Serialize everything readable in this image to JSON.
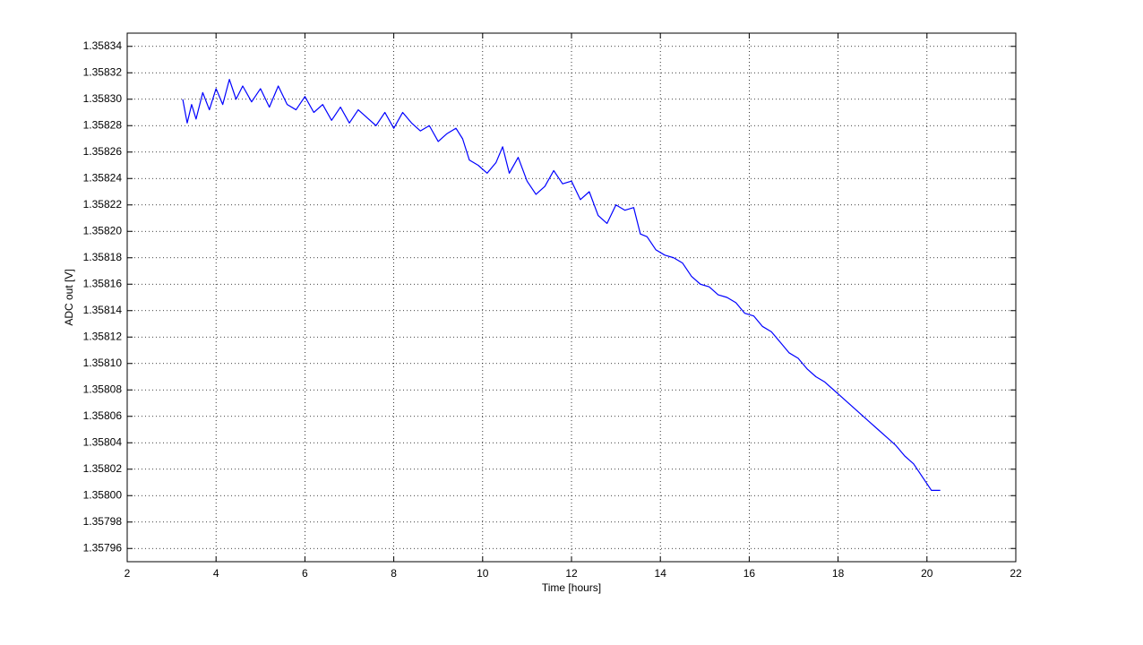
{
  "chart_data": {
    "type": "line",
    "x_label": "Time [hours]",
    "y_label": "ADC out [V]",
    "xlim": [
      2,
      22
    ],
    "xticks": [
      2,
      4,
      6,
      8,
      10,
      12,
      14,
      16,
      18,
      20,
      22
    ],
    "ylim": [
      1.35795,
      1.35835
    ],
    "yticks": [
      1.35796,
      1.35798,
      {
        "value": 1.358,
        "label": "1.35800"
      },
      1.35802,
      1.35804,
      1.35806,
      1.35808,
      {
        "value": 1.3581,
        "label": "1.35810"
      },
      1.35812,
      1.35814,
      1.35816,
      1.35818,
      {
        "value": 1.3582,
        "label": "1.35820"
      },
      1.35822,
      1.35824,
      1.35826,
      1.35828,
      {
        "value": 1.3583,
        "label": "1.35830"
      },
      1.35832,
      1.35834
    ],
    "grid": true,
    "x": [
      3.25,
      3.35,
      3.45,
      3.55,
      3.7,
      3.85,
      4.0,
      4.15,
      4.3,
      4.45,
      4.6,
      4.8,
      5.0,
      5.2,
      5.4,
      5.6,
      5.8,
      6.0,
      6.2,
      6.4,
      6.6,
      6.8,
      7.0,
      7.2,
      7.4,
      7.6,
      7.8,
      8.0,
      8.2,
      8.4,
      8.6,
      8.8,
      9.0,
      9.2,
      9.4,
      9.55,
      9.7,
      9.9,
      10.1,
      10.3,
      10.45,
      10.6,
      10.8,
      11.0,
      11.2,
      11.4,
      11.6,
      11.8,
      12.0,
      12.2,
      12.4,
      12.6,
      12.8,
      13.0,
      13.2,
      13.4,
      13.55,
      13.7,
      13.9,
      14.1,
      14.3,
      14.5,
      14.7,
      14.9,
      15.1,
      15.3,
      15.5,
      15.7,
      15.9,
      16.1,
      16.3,
      16.5,
      16.7,
      16.9,
      17.1,
      17.3,
      17.5,
      17.7,
      17.9,
      18.1,
      18.3,
      18.5,
      18.7,
      18.9,
      19.1,
      19.3,
      19.5,
      19.7,
      19.9,
      20.1,
      20.3
    ],
    "series": [
      {
        "color": "#0000ff",
        "values": [
          1.3583,
          1.358282,
          1.358296,
          1.358285,
          1.358305,
          1.358292,
          1.358308,
          1.358296,
          1.358315,
          1.3583,
          1.35831,
          1.358298,
          1.358308,
          1.358294,
          1.35831,
          1.358296,
          1.358292,
          1.358302,
          1.35829,
          1.358296,
          1.358284,
          1.358294,
          1.358282,
          1.358292,
          1.358286,
          1.35828,
          1.35829,
          1.358278,
          1.35829,
          1.358282,
          1.358276,
          1.35828,
          1.358268,
          1.358274,
          1.358278,
          1.35827,
          1.358254,
          1.35825,
          1.358244,
          1.358252,
          1.358264,
          1.358244,
          1.358256,
          1.358238,
          1.358228,
          1.358234,
          1.358246,
          1.358236,
          1.358238,
          1.358224,
          1.35823,
          1.358212,
          1.358206,
          1.35822,
          1.358216,
          1.358218,
          1.358198,
          1.358196,
          1.358186,
          1.358182,
          1.35818,
          1.358176,
          1.358166,
          1.35816,
          1.358158,
          1.358152,
          1.35815,
          1.358146,
          1.358138,
          1.358136,
          1.358128,
          1.358124,
          1.358116,
          1.358108,
          1.358104,
          1.358096,
          1.35809,
          1.358086,
          1.35808,
          1.358074,
          1.358068,
          1.358062,
          1.358056,
          1.35805,
          1.358044,
          1.358038,
          1.35803,
          1.358024,
          1.358014,
          1.358004,
          1.358004
        ]
      }
    ]
  }
}
